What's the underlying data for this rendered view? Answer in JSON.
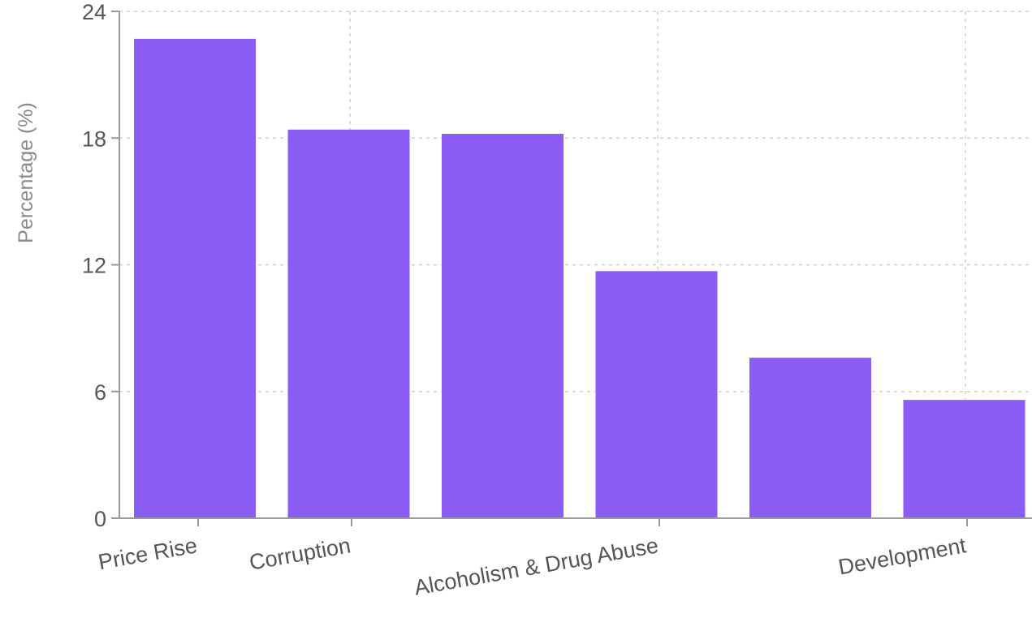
{
  "chart_data": {
    "type": "bar",
    "title": "",
    "xlabel": "",
    "ylabel": "Percentage (%)",
    "ylim": [
      0,
      24
    ],
    "yticks": [
      0,
      6,
      12,
      18,
      24
    ],
    "grid": true,
    "bar_color": "#8b5cf6",
    "categories": [
      "Price Rise",
      "Corruption",
      "",
      "Alcoholism & Drug Abuse",
      "",
      "Development"
    ],
    "values": [
      22.7,
      18.4,
      18.2,
      11.7,
      7.6,
      5.6
    ]
  }
}
